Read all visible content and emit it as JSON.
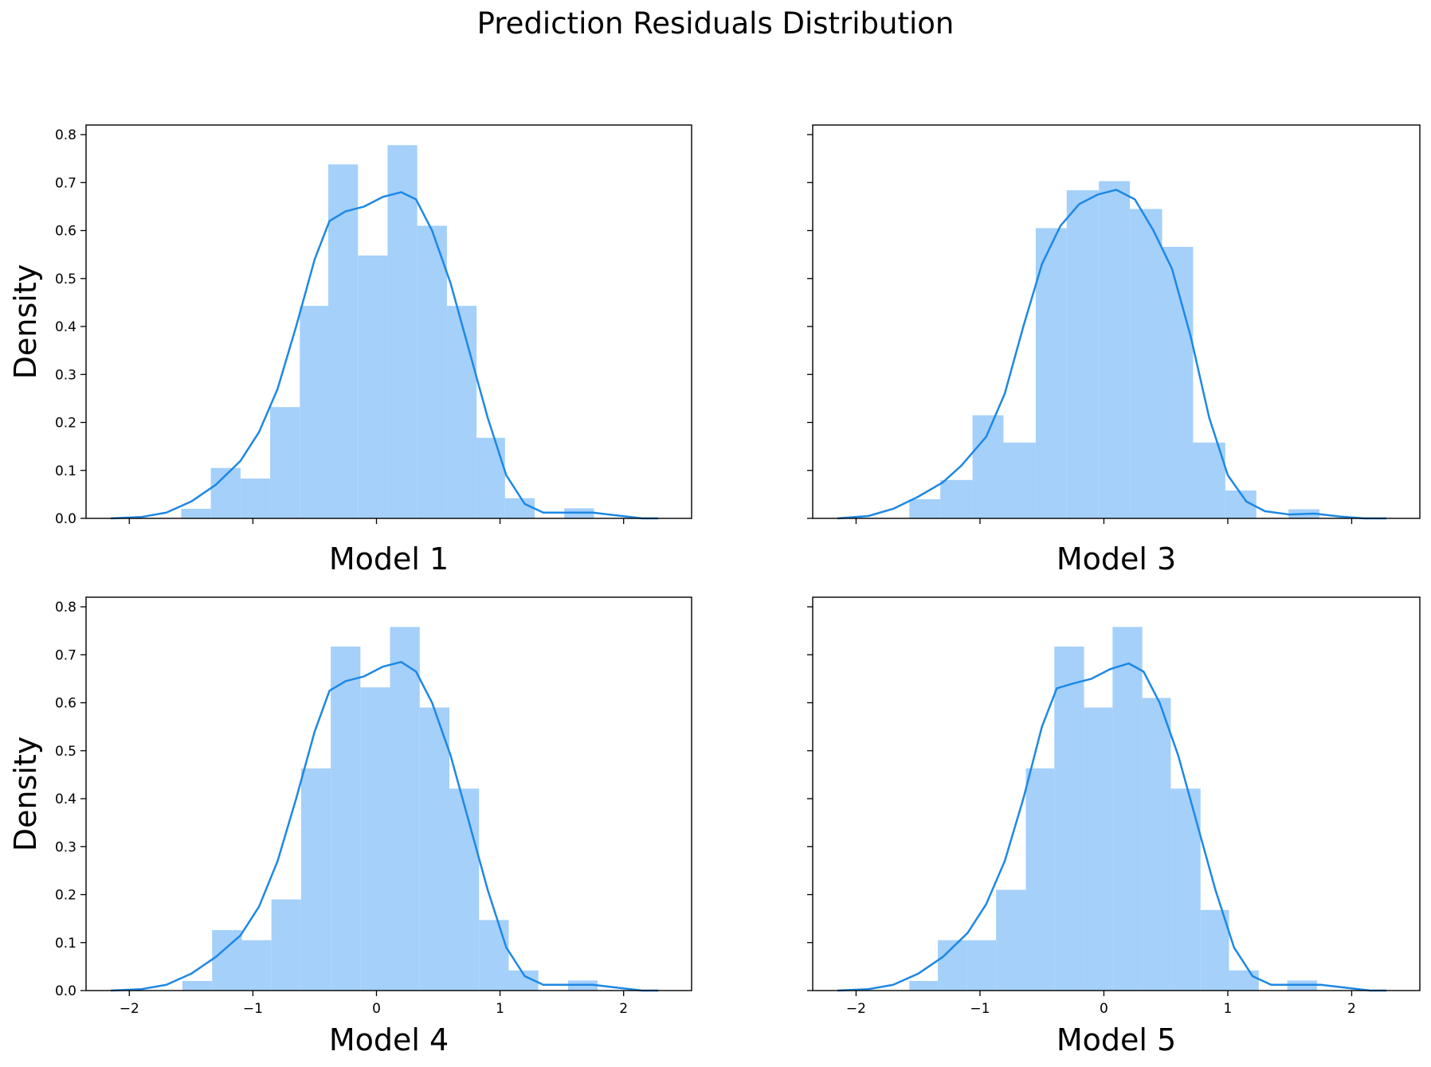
{
  "title": "Prediction Residuals Distribution",
  "colors": {
    "hist": "#a4d0fa",
    "kde": "#1e88e5",
    "axis": "#000000"
  },
  "chart_data": [
    {
      "type": "histogram+kde",
      "xlabel": "Model 1",
      "ylabel": "Density",
      "xlim": [
        -2.35,
        2.55
      ],
      "ylim": [
        0,
        0.82
      ],
      "xticks": [
        -2,
        -1,
        0,
        1,
        2
      ],
      "xtick_labels": [
        "−2",
        "−1",
        "0",
        "1",
        "2"
      ],
      "yticks": [
        0.0,
        0.1,
        0.2,
        0.3,
        0.4,
        0.5,
        0.6,
        0.7,
        0.8
      ],
      "ytick_labels": [
        "0.0",
        "0.1",
        "0.2",
        "0.3",
        "0.4",
        "0.5",
        "0.6",
        "0.7",
        "0.8"
      ],
      "show_xtick_labels": false,
      "show_ytick_labels": true,
      "bins": [
        {
          "x0": -1.58,
          "x1": -1.34,
          "density": 0.02
        },
        {
          "x0": -1.34,
          "x1": -1.1,
          "density": 0.105
        },
        {
          "x0": -1.1,
          "x1": -0.86,
          "density": 0.083
        },
        {
          "x0": -0.86,
          "x1": -0.62,
          "density": 0.232
        },
        {
          "x0": -0.62,
          "x1": -0.39,
          "density": 0.443
        },
        {
          "x0": -0.39,
          "x1": -0.15,
          "density": 0.738
        },
        {
          "x0": -0.15,
          "x1": 0.09,
          "density": 0.548
        },
        {
          "x0": 0.09,
          "x1": 0.33,
          "density": 0.778
        },
        {
          "x0": 0.33,
          "x1": 0.57,
          "density": 0.61
        },
        {
          "x0": 0.57,
          "x1": 0.81,
          "density": 0.443
        },
        {
          "x0": 0.81,
          "x1": 1.04,
          "density": 0.168
        },
        {
          "x0": 1.04,
          "x1": 1.28,
          "density": 0.042
        },
        {
          "x0": 1.28,
          "x1": 1.52,
          "density": 0.0
        },
        {
          "x0": 1.52,
          "x1": 1.76,
          "density": 0.021
        }
      ],
      "kde": [
        [
          -2.15,
          0.0
        ],
        [
          -1.9,
          0.003
        ],
        [
          -1.7,
          0.012
        ],
        [
          -1.5,
          0.035
        ],
        [
          -1.3,
          0.07
        ],
        [
          -1.1,
          0.12
        ],
        [
          -0.95,
          0.18
        ],
        [
          -0.8,
          0.27
        ],
        [
          -0.65,
          0.4
        ],
        [
          -0.5,
          0.54
        ],
        [
          -0.38,
          0.62
        ],
        [
          -0.25,
          0.64
        ],
        [
          -0.1,
          0.65
        ],
        [
          0.05,
          0.67
        ],
        [
          0.2,
          0.68
        ],
        [
          0.32,
          0.665
        ],
        [
          0.45,
          0.6
        ],
        [
          0.6,
          0.49
        ],
        [
          0.75,
          0.35
        ],
        [
          0.9,
          0.21
        ],
        [
          1.05,
          0.09
        ],
        [
          1.2,
          0.03
        ],
        [
          1.35,
          0.012
        ],
        [
          1.55,
          0.012
        ],
        [
          1.75,
          0.012
        ],
        [
          1.95,
          0.006
        ],
        [
          2.15,
          0.0
        ],
        [
          2.28,
          0.0
        ]
      ]
    },
    {
      "type": "histogram+kde",
      "xlabel": "Model 3",
      "ylabel": "",
      "xlim": [
        -2.35,
        2.55
      ],
      "ylim": [
        0,
        0.82
      ],
      "xticks": [
        -2,
        -1,
        0,
        1,
        2
      ],
      "xtick_labels": [
        "−2",
        "−1",
        "0",
        "1",
        "2"
      ],
      "yticks": [
        0.0,
        0.1,
        0.2,
        0.3,
        0.4,
        0.5,
        0.6,
        0.7,
        0.8
      ],
      "ytick_labels": [],
      "show_xtick_labels": false,
      "show_ytick_labels": false,
      "bins": [
        {
          "x0": -1.57,
          "x1": -1.32,
          "density": 0.04
        },
        {
          "x0": -1.32,
          "x1": -1.06,
          "density": 0.08
        },
        {
          "x0": -1.06,
          "x1": -0.81,
          "density": 0.215
        },
        {
          "x0": -0.81,
          "x1": -0.55,
          "density": 0.158
        },
        {
          "x0": -0.55,
          "x1": -0.3,
          "density": 0.605
        },
        {
          "x0": -0.3,
          "x1": -0.04,
          "density": 0.684
        },
        {
          "x0": -0.04,
          "x1": 0.21,
          "density": 0.703
        },
        {
          "x0": 0.21,
          "x1": 0.47,
          "density": 0.645
        },
        {
          "x0": 0.47,
          "x1": 0.72,
          "density": 0.566
        },
        {
          "x0": 0.72,
          "x1": 0.98,
          "density": 0.158
        },
        {
          "x0": 0.98,
          "x1": 1.23,
          "density": 0.058
        },
        {
          "x0": 1.23,
          "x1": 1.49,
          "density": 0.0
        },
        {
          "x0": 1.49,
          "x1": 1.74,
          "density": 0.019
        }
      ],
      "kde": [
        [
          -2.15,
          0.0
        ],
        [
          -1.9,
          0.005
        ],
        [
          -1.7,
          0.02
        ],
        [
          -1.5,
          0.045
        ],
        [
          -1.3,
          0.075
        ],
        [
          -1.15,
          0.11
        ],
        [
          -0.95,
          0.17
        ],
        [
          -0.8,
          0.26
        ],
        [
          -0.65,
          0.4
        ],
        [
          -0.5,
          0.53
        ],
        [
          -0.35,
          0.61
        ],
        [
          -0.2,
          0.655
        ],
        [
          -0.05,
          0.675
        ],
        [
          0.1,
          0.685
        ],
        [
          0.25,
          0.665
        ],
        [
          0.4,
          0.6
        ],
        [
          0.55,
          0.52
        ],
        [
          0.7,
          0.38
        ],
        [
          0.85,
          0.21
        ],
        [
          1.0,
          0.09
        ],
        [
          1.15,
          0.035
        ],
        [
          1.3,
          0.015
        ],
        [
          1.5,
          0.008
        ],
        [
          1.7,
          0.01
        ],
        [
          1.9,
          0.004
        ],
        [
          2.1,
          0.0
        ],
        [
          2.28,
          0.0
        ]
      ]
    },
    {
      "type": "histogram+kde",
      "xlabel": "Model 4",
      "ylabel": "Density",
      "xlim": [
        -2.35,
        2.55
      ],
      "ylim": [
        0,
        0.82
      ],
      "xticks": [
        -2,
        -1,
        0,
        1,
        2
      ],
      "xtick_labels": [
        "−2",
        "−1",
        "0",
        "1",
        "2"
      ],
      "yticks": [
        0.0,
        0.1,
        0.2,
        0.3,
        0.4,
        0.5,
        0.6,
        0.7,
        0.8
      ],
      "ytick_labels": [
        "0.0",
        "0.1",
        "0.2",
        "0.3",
        "0.4",
        "0.5",
        "0.6",
        "0.7",
        "0.8"
      ],
      "show_xtick_labels": true,
      "show_ytick_labels": true,
      "bins": [
        {
          "x0": -1.57,
          "x1": -1.33,
          "density": 0.02
        },
        {
          "x0": -1.33,
          "x1": -1.09,
          "density": 0.126
        },
        {
          "x0": -1.09,
          "x1": -0.85,
          "density": 0.105
        },
        {
          "x0": -0.85,
          "x1": -0.61,
          "density": 0.19
        },
        {
          "x0": -0.61,
          "x1": -0.37,
          "density": 0.463
        },
        {
          "x0": -0.37,
          "x1": -0.13,
          "density": 0.717
        },
        {
          "x0": -0.13,
          "x1": 0.11,
          "density": 0.632
        },
        {
          "x0": 0.11,
          "x1": 0.35,
          "density": 0.758
        },
        {
          "x0": 0.35,
          "x1": 0.59,
          "density": 0.59
        },
        {
          "x0": 0.59,
          "x1": 0.83,
          "density": 0.421
        },
        {
          "x0": 0.83,
          "x1": 1.07,
          "density": 0.147
        },
        {
          "x0": 1.07,
          "x1": 1.31,
          "density": 0.042
        },
        {
          "x0": 1.31,
          "x1": 1.55,
          "density": 0.0
        },
        {
          "x0": 1.55,
          "x1": 1.79,
          "density": 0.021
        }
      ],
      "kde": [
        [
          -2.15,
          0.0
        ],
        [
          -1.9,
          0.003
        ],
        [
          -1.7,
          0.012
        ],
        [
          -1.5,
          0.035
        ],
        [
          -1.3,
          0.07
        ],
        [
          -1.1,
          0.115
        ],
        [
          -0.95,
          0.175
        ],
        [
          -0.8,
          0.27
        ],
        [
          -0.65,
          0.4
        ],
        [
          -0.5,
          0.54
        ],
        [
          -0.38,
          0.625
        ],
        [
          -0.25,
          0.645
        ],
        [
          -0.1,
          0.655
        ],
        [
          0.05,
          0.675
        ],
        [
          0.2,
          0.685
        ],
        [
          0.32,
          0.665
        ],
        [
          0.45,
          0.6
        ],
        [
          0.6,
          0.49
        ],
        [
          0.75,
          0.35
        ],
        [
          0.9,
          0.21
        ],
        [
          1.05,
          0.09
        ],
        [
          1.2,
          0.03
        ],
        [
          1.35,
          0.012
        ],
        [
          1.55,
          0.012
        ],
        [
          1.75,
          0.012
        ],
        [
          1.95,
          0.006
        ],
        [
          2.15,
          0.0
        ],
        [
          2.28,
          0.0
        ]
      ]
    },
    {
      "type": "histogram+kde",
      "xlabel": "Model 5",
      "ylabel": "",
      "xlim": [
        -2.35,
        2.55
      ],
      "ylim": [
        0,
        0.82
      ],
      "xticks": [
        -2,
        -1,
        0,
        1,
        2
      ],
      "xtick_labels": [
        "−2",
        "−1",
        "0",
        "1",
        "2"
      ],
      "yticks": [
        0.0,
        0.1,
        0.2,
        0.3,
        0.4,
        0.5,
        0.6,
        0.7,
        0.8
      ],
      "ytick_labels": [],
      "show_xtick_labels": true,
      "show_ytick_labels": false,
      "bins": [
        {
          "x0": -1.57,
          "x1": -1.34,
          "density": 0.02
        },
        {
          "x0": -1.34,
          "x1": -1.1,
          "density": 0.105
        },
        {
          "x0": -1.1,
          "x1": -0.87,
          "density": 0.105
        },
        {
          "x0": -0.87,
          "x1": -0.63,
          "density": 0.21
        },
        {
          "x0": -0.63,
          "x1": -0.4,
          "density": 0.463
        },
        {
          "x0": -0.4,
          "x1": -0.16,
          "density": 0.717
        },
        {
          "x0": -0.16,
          "x1": 0.07,
          "density": 0.59
        },
        {
          "x0": 0.07,
          "x1": 0.31,
          "density": 0.758
        },
        {
          "x0": 0.31,
          "x1": 0.54,
          "density": 0.61
        },
        {
          "x0": 0.54,
          "x1": 0.78,
          "density": 0.421
        },
        {
          "x0": 0.78,
          "x1": 1.01,
          "density": 0.168
        },
        {
          "x0": 1.01,
          "x1": 1.25,
          "density": 0.042
        },
        {
          "x0": 1.25,
          "x1": 1.48,
          "density": 0.0
        },
        {
          "x0": 1.48,
          "x1": 1.72,
          "density": 0.021
        }
      ],
      "kde": [
        [
          -2.15,
          0.0
        ],
        [
          -1.9,
          0.003
        ],
        [
          -1.7,
          0.012
        ],
        [
          -1.5,
          0.035
        ],
        [
          -1.3,
          0.07
        ],
        [
          -1.1,
          0.12
        ],
        [
          -0.95,
          0.18
        ],
        [
          -0.8,
          0.27
        ],
        [
          -0.65,
          0.4
        ],
        [
          -0.5,
          0.55
        ],
        [
          -0.38,
          0.63
        ],
        [
          -0.25,
          0.64
        ],
        [
          -0.1,
          0.65
        ],
        [
          0.05,
          0.67
        ],
        [
          0.2,
          0.682
        ],
        [
          0.32,
          0.665
        ],
        [
          0.45,
          0.6
        ],
        [
          0.6,
          0.49
        ],
        [
          0.75,
          0.35
        ],
        [
          0.9,
          0.21
        ],
        [
          1.05,
          0.09
        ],
        [
          1.2,
          0.03
        ],
        [
          1.35,
          0.012
        ],
        [
          1.55,
          0.012
        ],
        [
          1.75,
          0.012
        ],
        [
          1.95,
          0.006
        ],
        [
          2.15,
          0.0
        ],
        [
          2.28,
          0.0
        ]
      ]
    }
  ]
}
